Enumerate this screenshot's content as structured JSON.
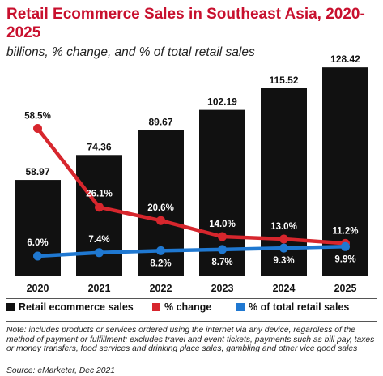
{
  "chart_data": {
    "type": "bar",
    "title": "Retail Ecommerce Sales in Southeast Asia, 2020-2025",
    "subtitle": "billions, % change, and % of total retail sales",
    "categories": [
      "2020",
      "2021",
      "2022",
      "2023",
      "2024",
      "2025"
    ],
    "series": [
      {
        "name": "Retail ecommerce sales",
        "kind": "bar",
        "color": "#111111",
        "values": [
          58.97,
          74.36,
          89.67,
          102.19,
          115.52,
          128.42
        ],
        "labels": [
          "58.97",
          "74.36",
          "89.67",
          "102.19",
          "115.52",
          "128.42"
        ]
      },
      {
        "name": "% change",
        "kind": "line",
        "color": "#d7262d",
        "values": [
          58.5,
          26.1,
          20.6,
          14.0,
          13.0,
          11.2
        ],
        "labels": [
          "58.5%",
          "26.1%",
          "20.6%",
          "14.0%",
          "13.0%",
          "11.2%"
        ]
      },
      {
        "name": "% of total retail sales",
        "kind": "line",
        "color": "#1f78d1",
        "values": [
          6.0,
          7.4,
          8.2,
          8.7,
          9.3,
          9.9
        ],
        "labels": [
          "6.0%",
          "7.4%",
          "8.2%",
          "8.7%",
          "9.3%",
          "9.9%"
        ]
      }
    ],
    "ylim": [
      0,
      140
    ],
    "pct_ylim": [
      0,
      80
    ],
    "grid": false,
    "legend_position": "bottom"
  },
  "footer": {
    "note": "Note: includes products or services ordered using the internet via any device, regardless of the method of payment or fulfillment; excludes travel and event tickets, payments such as bill pay, taxes or money transfers, food services and drinking place sales, gambling and other vice good sales",
    "source": "Source: eMarketer, Dec 2021"
  }
}
